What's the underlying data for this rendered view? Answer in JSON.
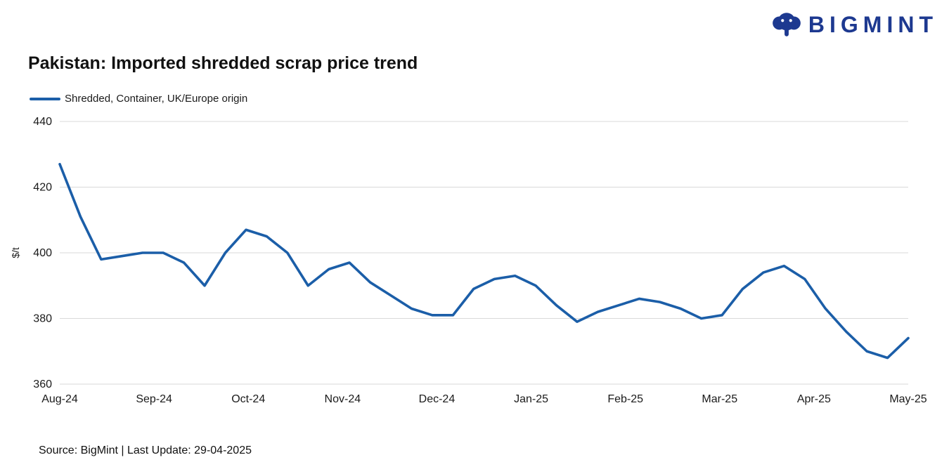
{
  "logo": {
    "text": "BIGMINT"
  },
  "title": "Pakistan: Imported shredded scrap price trend",
  "legend": {
    "label": "Shredded, Container, UK/Europe origin"
  },
  "footer": {
    "text": "Source: BigMint | Last Update: 29-04-2025"
  },
  "colors": {
    "line": "#1B5EA8",
    "logo": "#1D3990",
    "grid": "#D9D9D9",
    "axis_text": "#1a1a1a",
    "title_text": "#111111"
  },
  "chart_data": {
    "type": "line",
    "title": "Pakistan: Imported shredded scrap price trend",
    "xlabel": "",
    "ylabel": "$/t",
    "ylim": [
      360,
      440
    ],
    "yticks": [
      360,
      380,
      400,
      420,
      440
    ],
    "grid": "horizontal",
    "legend_position": "top-left",
    "x_tick_labels": [
      "Aug-24",
      "Sep-24",
      "Oct-24",
      "Nov-24",
      "Dec-24",
      "Jan-25",
      "Feb-25",
      "Mar-25",
      "Apr-25",
      "May-25"
    ],
    "series": [
      {
        "name": "Shredded, Container, UK/Europe origin",
        "values": [
          427,
          411,
          398,
          399,
          400,
          400,
          397,
          390,
          400,
          407,
          405,
          400,
          390,
          395,
          397,
          391,
          387,
          383,
          381,
          381,
          389,
          392,
          393,
          390,
          384,
          379,
          382,
          384,
          386,
          385,
          383,
          380,
          381,
          389,
          394,
          396,
          392,
          383,
          376,
          370,
          368,
          374
        ]
      }
    ]
  }
}
